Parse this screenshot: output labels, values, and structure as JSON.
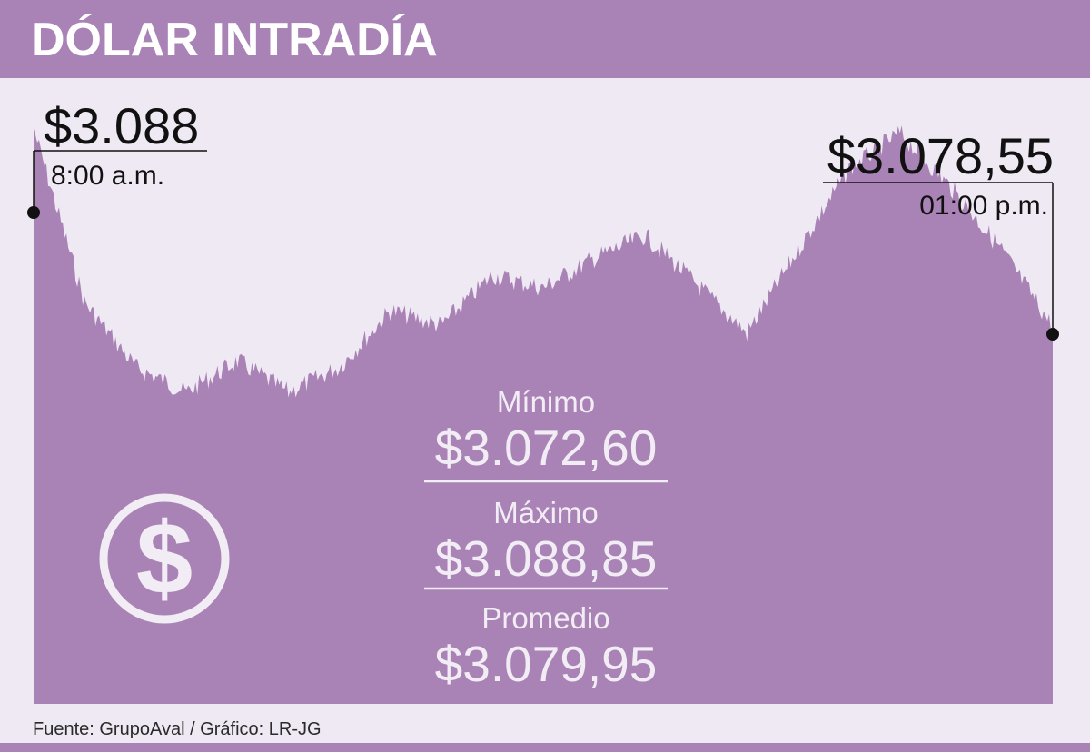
{
  "header": {
    "title": "DÓLAR INTRADÍA"
  },
  "footer": {
    "source": "Fuente:  GrupoAval / Gráfico: LR-JG"
  },
  "colors": {
    "header": "#a983b6",
    "area": "#a983b6",
    "background": "#efe9f3",
    "stat_text": "#f2edf5"
  },
  "icons": {
    "dollar": "dollar-circle-icon"
  },
  "chart_data": {
    "type": "area",
    "title": "DÓLAR INTRADÍA",
    "xlabel": "",
    "ylabel": "",
    "grid": false,
    "ylim": [
      3060.5,
      3090.3
    ],
    "x": [
      "8:00",
      "8:15",
      "8:30",
      "8:45",
      "9:00",
      "9:15",
      "9:30",
      "9:45",
      "10:00",
      "10:15",
      "10:30",
      "10:45",
      "11:00",
      "11:15",
      "11:30",
      "11:45",
      "12:00",
      "12:15",
      "12:30",
      "12:45",
      "13:00"
    ],
    "values": [
      3088.0,
      3079.7,
      3076.6,
      3075.4,
      3076.9,
      3075.4,
      3076.6,
      3079.3,
      3078.6,
      3081.0,
      3080.4,
      3081.8,
      3082.9,
      3080.6,
      3078.2,
      3082.2,
      3086.1,
      3087.8,
      3085.2,
      3082.2,
      3078.55
    ],
    "start": {
      "value": "$3.088",
      "time": "8:00 a.m."
    },
    "end": {
      "value": "$3.078,55",
      "time": "01:00 p.m."
    },
    "stats": [
      {
        "label": "Mínimo",
        "value": "$3.072,60"
      },
      {
        "label": "Máximo",
        "value": "$3.088,85"
      },
      {
        "label": "Promedio",
        "value": "$3.079,95"
      }
    ]
  }
}
